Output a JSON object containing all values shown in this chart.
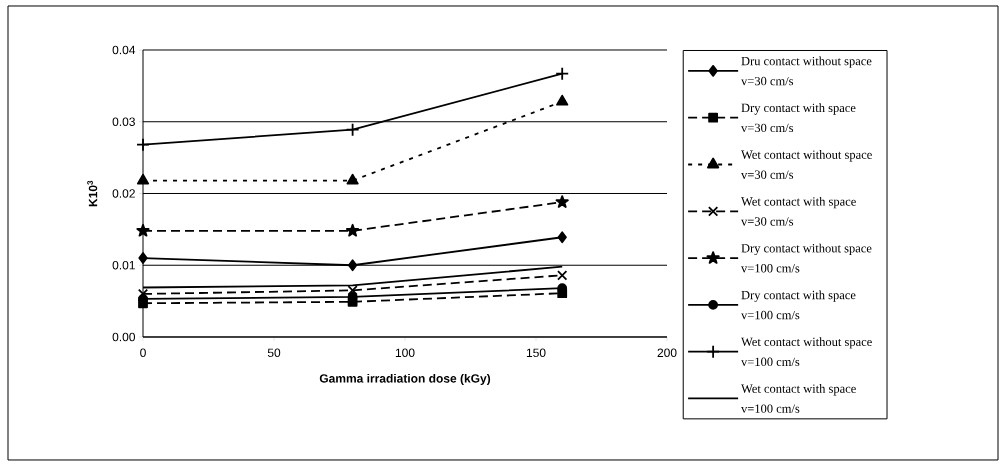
{
  "chart_data": {
    "type": "line",
    "xlabel": "Gamma irradiation dose (kGy)",
    "ylabel": "K10$^{3}$",
    "x": [
      0,
      80,
      160
    ],
    "xlim": [
      0,
      200
    ],
    "xticks": [
      0,
      50,
      100,
      150,
      200
    ],
    "ylim": [
      0,
      0.04
    ],
    "yticks": [
      {
        "value": 0,
        "label": "0.00"
      },
      {
        "value": 0.01,
        "label": "0.01"
      },
      {
        "value": 0.02,
        "label": "0.02"
      },
      {
        "value": 0.03,
        "label": "0.03"
      },
      {
        "value": 0.04,
        "label": "0.04"
      }
    ],
    "grid": "y",
    "legend": "right",
    "series": [
      {
        "name": "Dru contact without space v=30 cm/s",
        "color": "#000000",
        "marker": "diamond",
        "line_style": "solid",
        "values": [
          0.011,
          0.01,
          0.0139
        ]
      },
      {
        "name": "Dry contact with space v=30 cm/s",
        "color": "#000000",
        "marker": "square",
        "line_style": "dashed",
        "values": [
          0.0047,
          0.0049,
          0.0061
        ]
      },
      {
        "name": "Wet contact without space v=30 cm/s",
        "color": "#000000",
        "marker": "triangle",
        "line_style": "dotted",
        "values": [
          0.0218,
          0.0218,
          0.0328
        ]
      },
      {
        "name": "Wet contact with space v=30 cm/s",
        "color": "#000000",
        "marker": "cross",
        "line_style": "dashed",
        "values": [
          0.006,
          0.0065,
          0.0086
        ]
      },
      {
        "name": "Dry contact without space v=100 cm/s",
        "color": "#000000",
        "marker": "star",
        "line_style": "dashed",
        "values": [
          0.0148,
          0.0148,
          0.0188
        ]
      },
      {
        "name": "Dry contact with space v=100 cm/s",
        "color": "#000000",
        "marker": "circle",
        "line_style": "solid",
        "values": [
          0.0053,
          0.0056,
          0.0068
        ]
      },
      {
        "name": "Wet contact without space v=100 cm/s",
        "color": "#000000",
        "marker": "plus",
        "line_style": "solid",
        "values": [
          0.0268,
          0.0289,
          0.0367
        ]
      },
      {
        "name": "Wet contact with space v=100 cm/s",
        "color": "#000000",
        "marker": "none",
        "line_style": "solid",
        "values": [
          0.0069,
          0.0072,
          0.0098
        ]
      }
    ]
  }
}
